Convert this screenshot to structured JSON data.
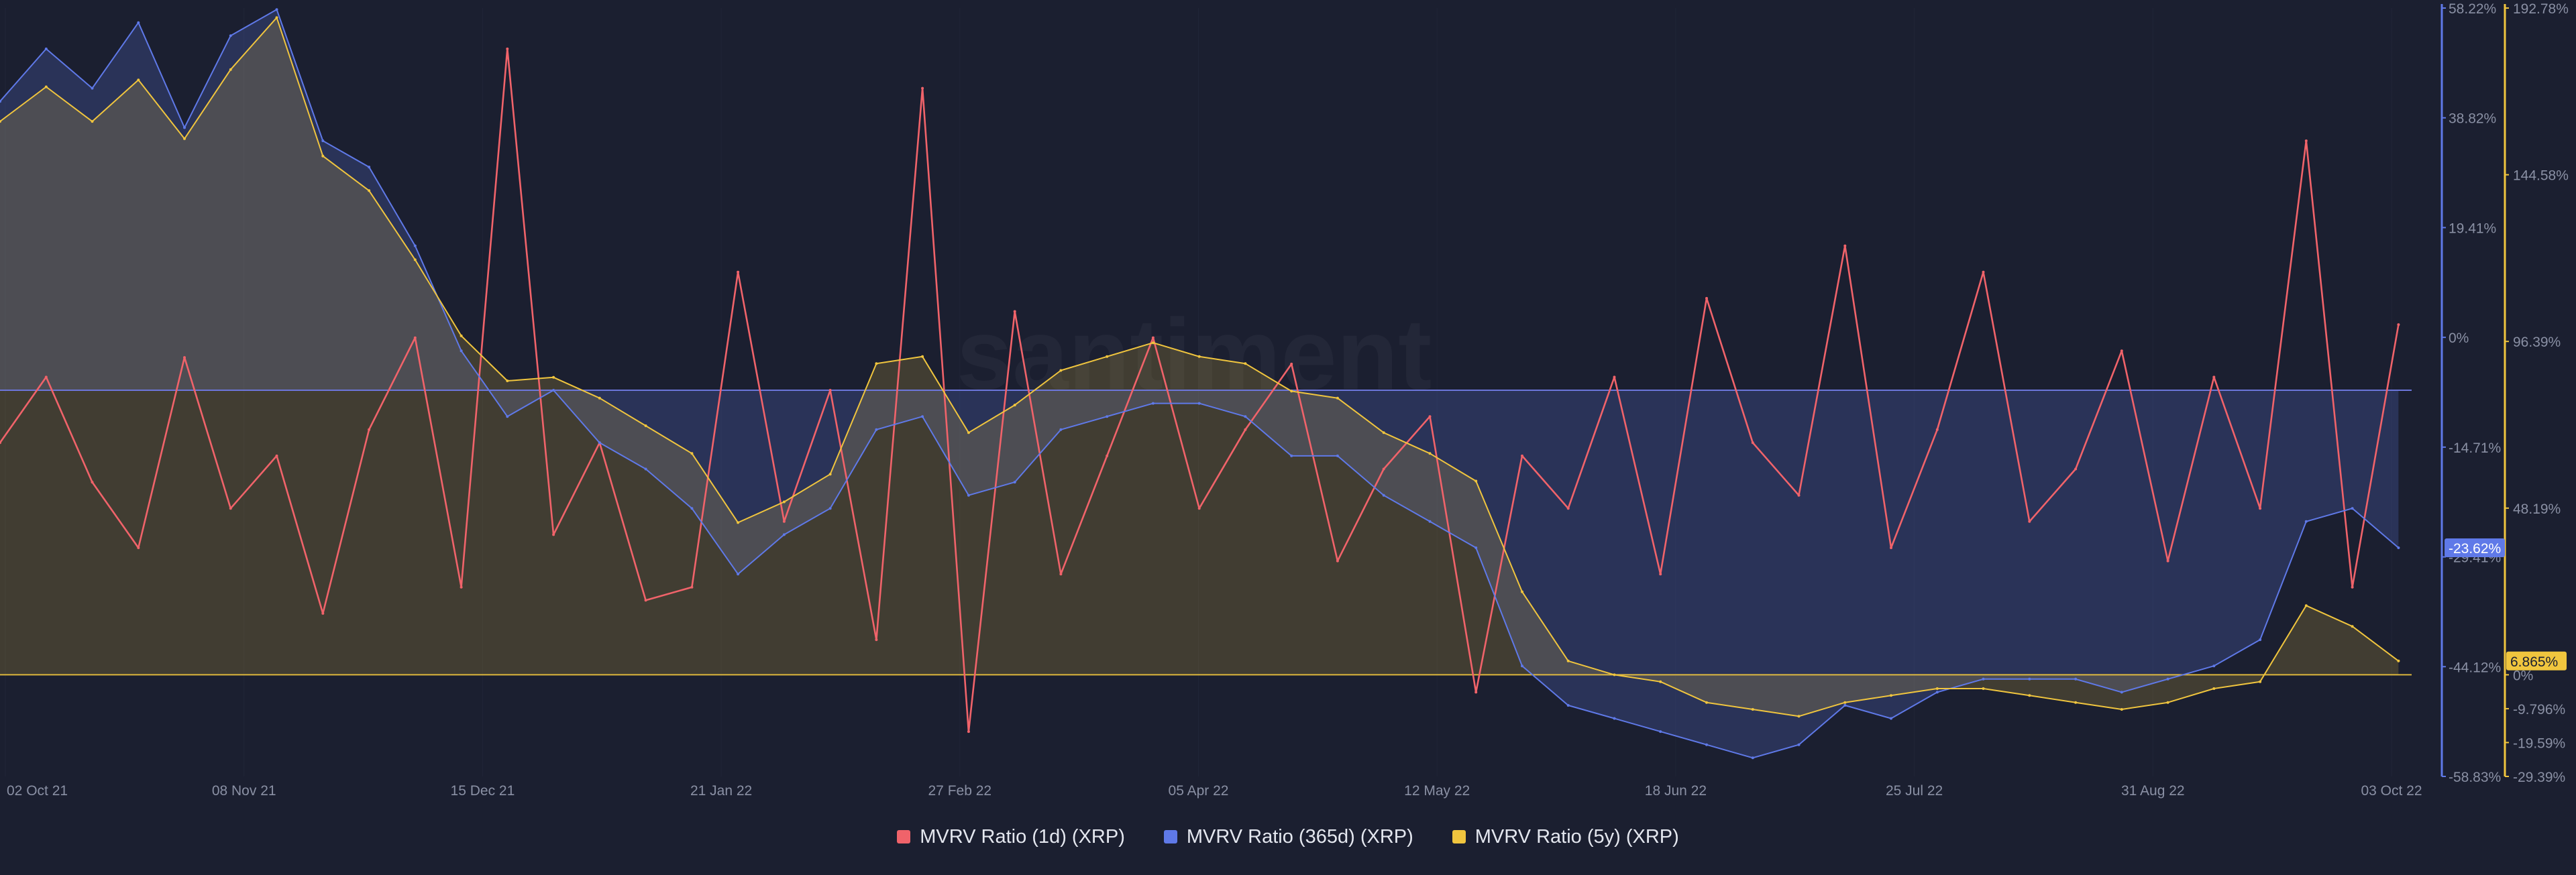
{
  "watermark": "santiment",
  "colors": {
    "background": "#1b1f30",
    "mvrv_1d": "#f0636a",
    "mvrv_365d": "#5f79e8",
    "mvrv_5y": "#f0c53e",
    "grid": "#2a3045"
  },
  "chart_data": {
    "type": "line",
    "title": "",
    "grid": false,
    "legend_position": "bottom-center",
    "x_tick_labels": [
      "02 Oct 21",
      "08 Nov 21",
      "15 Dec 21",
      "21 Jan 22",
      "27 Feb 22",
      "05 Apr 22",
      "12 May 22",
      "18 Jun 22",
      "25 Jul 22",
      "31 Aug 22",
      "03 Oct 22"
    ],
    "x_range": [
      "2021-10-02",
      "2022-10-03"
    ],
    "left_axis": {
      "unit": "percent",
      "range": [
        -58.83,
        58.22
      ],
      "tick_labels": [
        "58.22%",
        "38.82%",
        "19.41%",
        "0%",
        "-14.71%",
        "-29.41%",
        "-44.12%",
        "-58.83%"
      ]
    },
    "right_axis": {
      "unit": "percent",
      "range": [
        -29.39,
        192.78
      ],
      "tick_labels": [
        "192.78%",
        "144.58%",
        "96.39%",
        "48.19%",
        "0%",
        "-9.796%",
        "-19.59%",
        "-29.39%"
      ]
    },
    "current_value_labels": [
      {
        "series": "MVRV Ratio (365d) (XRP)",
        "label": "-23.62%"
      },
      {
        "series": "MVRV Ratio (5y) (XRP)",
        "label": "6.865%"
      }
    ],
    "series": [
      {
        "name": "MVRV Ratio (1d) (XRP)",
        "axis": "left",
        "style": "line",
        "x": [
          "2021-10-02",
          "2021-10-09",
          "2021-10-16",
          "2021-10-23",
          "2021-10-30",
          "2021-11-06",
          "2021-11-13",
          "2021-11-20",
          "2021-11-27",
          "2021-12-04",
          "2021-12-11",
          "2021-12-18",
          "2021-12-25",
          "2022-01-01",
          "2022-01-08",
          "2022-01-15",
          "2022-01-22",
          "2022-01-29",
          "2022-02-05",
          "2022-02-12",
          "2022-02-19",
          "2022-02-26",
          "2022-03-05",
          "2022-03-12",
          "2022-03-19",
          "2022-03-26",
          "2022-04-02",
          "2022-04-09",
          "2022-04-16",
          "2022-04-23",
          "2022-04-30",
          "2022-05-07",
          "2022-05-14",
          "2022-05-21",
          "2022-05-28",
          "2022-06-04",
          "2022-06-11",
          "2022-06-18",
          "2022-06-25",
          "2022-07-02",
          "2022-07-09",
          "2022-07-16",
          "2022-07-23",
          "2022-07-30",
          "2022-08-06",
          "2022-08-13",
          "2022-08-20",
          "2022-08-27",
          "2022-09-03",
          "2022-09-10",
          "2022-09-17",
          "2022-09-24",
          "2022-10-01"
        ],
        "values": [
          -8,
          2,
          -14,
          -24,
          5,
          -18,
          -10,
          -34,
          -6,
          8,
          -30,
          52,
          -22,
          -8,
          -32,
          -30,
          18,
          -20,
          0,
          -38,
          46,
          -52,
          12,
          -28,
          -10,
          8,
          -18,
          -6,
          4,
          -26,
          -12,
          -4,
          -46,
          -10,
          -18,
          2,
          -28,
          14,
          -8,
          -16,
          22,
          -24,
          -6,
          18,
          -20,
          -12,
          6,
          -26,
          2,
          -18,
          38,
          -30,
          10
        ]
      },
      {
        "name": "MVRV Ratio (365d) (XRP)",
        "axis": "left",
        "style": "area",
        "x": [
          "2021-10-02",
          "2021-10-09",
          "2021-10-16",
          "2021-10-23",
          "2021-10-30",
          "2021-11-06",
          "2021-11-13",
          "2021-11-20",
          "2021-11-27",
          "2021-12-04",
          "2021-12-11",
          "2021-12-18",
          "2021-12-25",
          "2022-01-01",
          "2022-01-08",
          "2022-01-15",
          "2022-01-22",
          "2022-01-29",
          "2022-02-05",
          "2022-02-12",
          "2022-02-19",
          "2022-02-26",
          "2022-03-05",
          "2022-03-12",
          "2022-03-19",
          "2022-03-26",
          "2022-04-02",
          "2022-04-09",
          "2022-04-16",
          "2022-04-23",
          "2022-04-30",
          "2022-05-07",
          "2022-05-14",
          "2022-05-21",
          "2022-05-28",
          "2022-06-04",
          "2022-06-11",
          "2022-06-18",
          "2022-06-25",
          "2022-07-02",
          "2022-07-09",
          "2022-07-16",
          "2022-07-23",
          "2022-07-30",
          "2022-08-06",
          "2022-08-13",
          "2022-08-20",
          "2022-08-27",
          "2022-09-03",
          "2022-09-10",
          "2022-09-17",
          "2022-09-24",
          "2022-10-01"
        ],
        "values": [
          44,
          52,
          46,
          56,
          40,
          54,
          58,
          38,
          34,
          22,
          6,
          -4,
          0,
          -8,
          -12,
          -18,
          -28,
          -22,
          -18,
          -6,
          -4,
          -16,
          -14,
          -6,
          -4,
          -2,
          -2,
          -4,
          -10,
          -10,
          -16,
          -20,
          -24,
          -42,
          -48,
          -50,
          -52,
          -54,
          -56,
          -54,
          -48,
          -50,
          -46,
          -44,
          -44,
          -44,
          -46,
          -44,
          -42,
          -38,
          -20,
          -18,
          -24
        ]
      },
      {
        "name": "MVRV Ratio (5y) (XRP)",
        "axis": "right",
        "style": "area",
        "x": [
          "2021-10-02",
          "2021-10-09",
          "2021-10-16",
          "2021-10-23",
          "2021-10-30",
          "2021-11-06",
          "2021-11-13",
          "2021-11-20",
          "2021-11-27",
          "2021-12-04",
          "2021-12-11",
          "2021-12-18",
          "2021-12-25",
          "2022-01-01",
          "2022-01-08",
          "2022-01-15",
          "2022-01-22",
          "2022-01-29",
          "2022-02-05",
          "2022-02-12",
          "2022-02-19",
          "2022-02-26",
          "2022-03-05",
          "2022-03-12",
          "2022-03-19",
          "2022-03-26",
          "2022-04-02",
          "2022-04-09",
          "2022-04-16",
          "2022-04-23",
          "2022-04-30",
          "2022-05-07",
          "2022-05-14",
          "2022-05-21",
          "2022-05-28",
          "2022-06-04",
          "2022-06-11",
          "2022-06-18",
          "2022-06-25",
          "2022-07-02",
          "2022-07-09",
          "2022-07-16",
          "2022-07-23",
          "2022-07-30",
          "2022-08-06",
          "2022-08-13",
          "2022-08-20",
          "2022-08-27",
          "2022-09-03",
          "2022-09-10",
          "2022-09-17",
          "2022-09-24",
          "2022-10-01"
        ],
        "values": [
          160,
          170,
          160,
          172,
          155,
          175,
          190,
          150,
          140,
          120,
          98,
          85,
          86,
          80,
          72,
          64,
          44,
          50,
          58,
          90,
          92,
          70,
          78,
          88,
          92,
          96,
          92,
          90,
          82,
          80,
          70,
          64,
          56,
          24,
          4,
          0,
          -2,
          -8,
          -10,
          -12,
          -8,
          -6,
          -4,
          -4,
          -6,
          -8,
          -10,
          -8,
          -4,
          -2,
          20,
          14,
          4
        ]
      }
    ]
  }
}
